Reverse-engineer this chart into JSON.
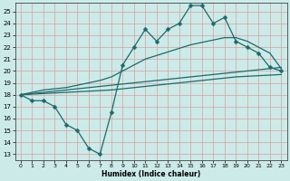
{
  "title": "",
  "xlabel": "Humidex (Indice chaleur)",
  "bg_color": "#cceae8",
  "grid_color": "#e8b8b8",
  "line_color": "#1a6b6b",
  "line1_x": [
    0,
    1,
    2,
    3,
    4,
    5,
    6,
    7,
    8,
    9,
    10,
    11,
    12,
    13,
    14,
    15,
    16,
    17,
    18,
    19,
    20,
    21,
    22,
    23
  ],
  "line1_y": [
    18.0,
    17.5,
    17.5,
    17.0,
    15.5,
    15.0,
    13.5,
    13.0,
    16.5,
    20.5,
    22.0,
    23.5,
    22.5,
    23.5,
    24.0,
    25.5,
    25.5,
    24.0,
    24.5,
    22.5,
    22.0,
    21.5,
    20.3,
    20.0
  ],
  "line2_x": [
    0,
    1,
    2,
    3,
    4,
    5,
    6,
    7,
    8,
    9,
    10,
    11,
    12,
    13,
    14,
    15,
    16,
    17,
    18,
    19,
    20,
    21,
    22,
    23
  ],
  "line2_y": [
    18.0,
    18.1,
    18.2,
    18.3,
    18.4,
    18.5,
    18.6,
    18.7,
    18.8,
    18.9,
    19.0,
    19.1,
    19.2,
    19.3,
    19.4,
    19.5,
    19.6,
    19.7,
    19.8,
    19.9,
    20.0,
    20.1,
    20.2,
    20.3
  ],
  "line3_x": [
    0,
    1,
    2,
    3,
    4,
    5,
    6,
    7,
    8,
    9,
    10,
    11,
    12,
    13,
    14,
    15,
    16,
    17,
    18,
    19,
    20,
    21,
    22,
    23
  ],
  "line3_y": [
    18.0,
    18.05,
    18.1,
    18.15,
    18.2,
    18.25,
    18.3,
    18.35,
    18.4,
    18.5,
    18.6,
    18.7,
    18.8,
    18.9,
    19.0,
    19.1,
    19.2,
    19.3,
    19.4,
    19.5,
    19.55,
    19.6,
    19.65,
    19.7
  ],
  "line4_x": [
    0,
    1,
    2,
    3,
    4,
    5,
    6,
    7,
    8,
    9,
    10,
    11,
    12,
    13,
    14,
    15,
    16,
    17,
    18,
    19,
    20,
    21,
    22,
    23
  ],
  "line4_y": [
    18.0,
    18.2,
    18.4,
    18.5,
    18.6,
    18.8,
    19.0,
    19.2,
    19.5,
    20.0,
    20.5,
    21.0,
    21.3,
    21.6,
    21.9,
    22.2,
    22.4,
    22.6,
    22.8,
    22.8,
    22.5,
    22.0,
    21.5,
    20.2
  ],
  "xlim": [
    -0.5,
    23.5
  ],
  "ylim": [
    12.5,
    25.7
  ],
  "yticks": [
    13,
    14,
    15,
    16,
    17,
    18,
    19,
    20,
    21,
    22,
    23,
    24,
    25
  ],
  "xticks": [
    0,
    1,
    2,
    3,
    4,
    5,
    6,
    7,
    8,
    9,
    10,
    11,
    12,
    13,
    14,
    15,
    16,
    17,
    18,
    19,
    20,
    21,
    22,
    23
  ]
}
